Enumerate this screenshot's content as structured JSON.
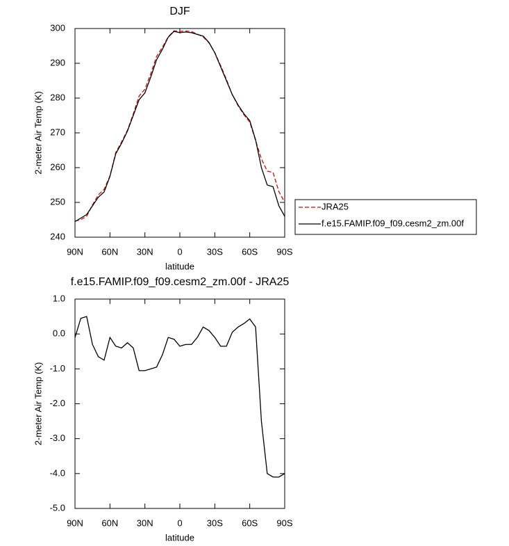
{
  "chart_data": [
    {
      "type": "line",
      "title": "DJF",
      "xlabel": "latitude",
      "ylabel": "2-meter Air Temp (K)",
      "x": [
        90,
        85,
        80,
        75,
        70,
        65,
        60,
        55,
        50,
        45,
        40,
        35,
        30,
        25,
        20,
        15,
        10,
        5,
        0,
        -5,
        -10,
        -15,
        -20,
        -25,
        -30,
        -35,
        -40,
        -45,
        -50,
        -55,
        -60,
        -65,
        -70,
        -75,
        -80,
        -85,
        -90
      ],
      "xlim": [
        90,
        -90
      ],
      "xticks": [
        {
          "value": 90,
          "label": "90N"
        },
        {
          "value": 60,
          "label": "60N"
        },
        {
          "value": 30,
          "label": "30N"
        },
        0,
        {
          "value": -30,
          "label": "30S"
        },
        {
          "value": -60,
          "label": "60S"
        },
        {
          "value": -90,
          "label": "90S"
        }
      ],
      "ylim": [
        240,
        300
      ],
      "yticks": [
        240,
        250,
        260,
        270,
        280,
        290,
        300
      ],
      "series": [
        {
          "name": "JRA25",
          "color": "#e00000",
          "dash": true,
          "values": [
            244.6,
            245.05,
            246.0,
            249.3,
            252.15,
            253.75,
            257.6,
            264.35,
            267.4,
            270.75,
            275.4,
            280.55,
            282.55,
            287.0,
            291.95,
            294.6,
            297.6,
            299.35,
            299.15,
            299.3,
            299.1,
            298.4,
            297.6,
            295.9,
            293.1,
            289.35,
            285.35,
            280.95,
            277.8,
            275.2,
            273.1,
            267.8,
            262.5,
            259.0,
            258.6,
            253.1,
            250.0
          ]
        },
        {
          "name": "f.e15.FAMIP.f09_f09.cesm2_zm.00f",
          "color": "#000000",
          "dash": false,
          "values": [
            244.5,
            245.5,
            246.5,
            249.0,
            251.5,
            253.0,
            257.5,
            264.0,
            267.0,
            270.5,
            275.0,
            279.5,
            281.5,
            286.0,
            291.0,
            294.0,
            297.5,
            299.2,
            298.8,
            299.0,
            298.8,
            298.3,
            297.8,
            296.0,
            293.0,
            289.0,
            285.0,
            281.0,
            278.0,
            275.5,
            273.5,
            268.0,
            260.0,
            255.0,
            254.5,
            249.0,
            246.0
          ]
        }
      ]
    },
    {
      "type": "line",
      "title": "f.e15.FAMIP.f09_f09.cesm2_zm.00f - JRA25",
      "xlabel": "latitude",
      "ylabel": "2-meter Air Temp (K)",
      "x": [
        90,
        85,
        80,
        75,
        70,
        65,
        60,
        55,
        50,
        45,
        40,
        35,
        30,
        25,
        20,
        15,
        10,
        5,
        0,
        -5,
        -10,
        -15,
        -20,
        -25,
        -30,
        -35,
        -40,
        -45,
        -50,
        -55,
        -60,
        -65,
        -70,
        -75,
        -80,
        -85,
        -90
      ],
      "xlim": [
        90,
        -90
      ],
      "xticks": [
        {
          "value": 90,
          "label": "90N"
        },
        {
          "value": 60,
          "label": "60N"
        },
        {
          "value": 30,
          "label": "30N"
        },
        0,
        {
          "value": -30,
          "label": "30S"
        },
        {
          "value": -60,
          "label": "60S"
        },
        {
          "value": -90,
          "label": "90S"
        }
      ],
      "ylim": [
        -5,
        1
      ],
      "yticks": [
        {
          "value": -5,
          "label": "-5.0"
        },
        {
          "value": -4,
          "label": "-4.0"
        },
        {
          "value": -3,
          "label": "-3.0"
        },
        {
          "value": -2,
          "label": "-2.0"
        },
        {
          "value": -1,
          "label": "-1.0"
        },
        {
          "value": 0,
          "label": "0.0"
        },
        {
          "value": 1,
          "label": "1.0"
        }
      ],
      "series": [
        {
          "color": "#000000",
          "values": [
            -0.1,
            0.45,
            0.5,
            -0.3,
            -0.65,
            -0.75,
            -0.1,
            -0.35,
            -0.4,
            -0.25,
            -0.4,
            -1.05,
            -1.05,
            -1.0,
            -0.95,
            -0.6,
            -0.1,
            -0.15,
            -0.35,
            -0.3,
            -0.3,
            -0.1,
            0.2,
            0.1,
            -0.1,
            -0.35,
            -0.35,
            0.05,
            0.2,
            0.3,
            0.43,
            0.2,
            -2.5,
            -4.0,
            -4.1,
            -4.1,
            -4.0
          ]
        }
      ]
    }
  ]
}
